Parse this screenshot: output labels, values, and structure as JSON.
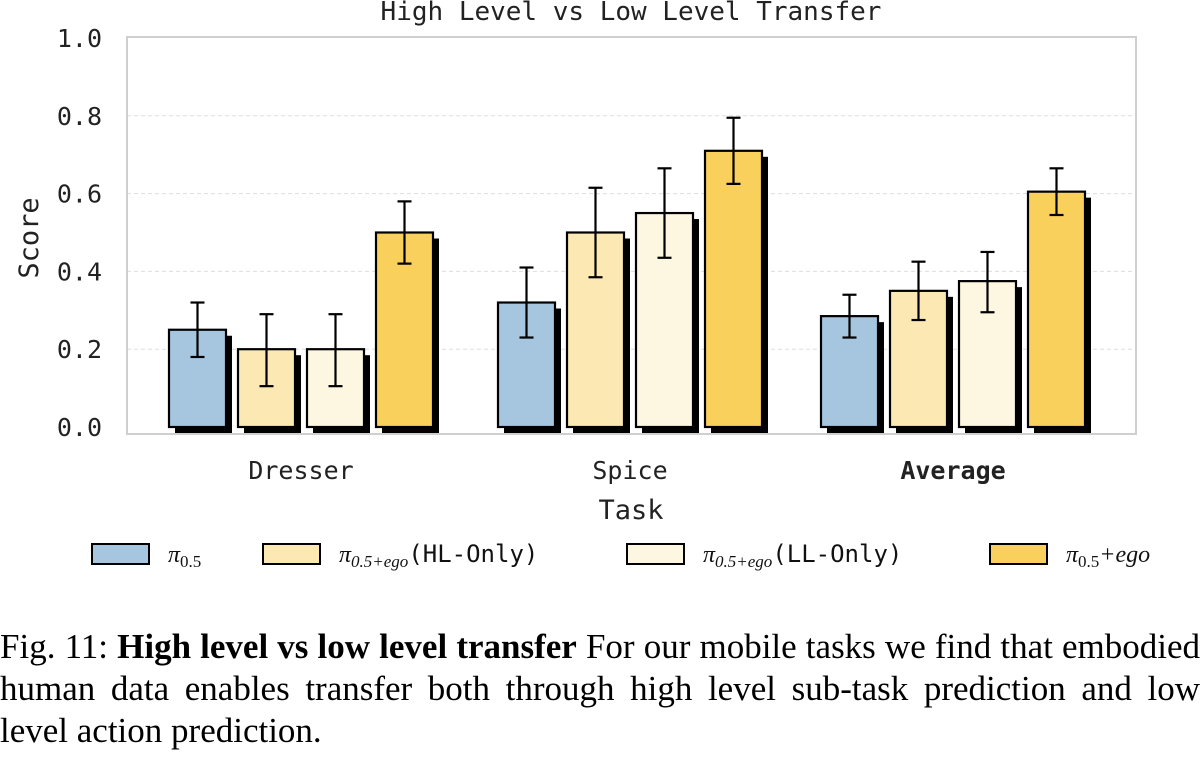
{
  "chart_data": {
    "type": "bar",
    "title": "High Level vs Low Level Transfer",
    "xlabel": "Task",
    "ylabel": "Score",
    "ylim": [
      0,
      1.0
    ],
    "yticks": [
      "0.0",
      "0.2",
      "0.4",
      "0.6",
      "0.8",
      "1.0"
    ],
    "categories": [
      "Dresser",
      "Spice",
      "Average"
    ],
    "bold_categories": [
      "Average"
    ],
    "grid": "horizontal dashed",
    "legend_position": "bottom",
    "series": [
      {
        "name": "π0.5",
        "color": "#a6c6e0",
        "values": [
          0.25,
          0.32,
          0.285
        ],
        "err_low": [
          0.18,
          0.23,
          0.23
        ],
        "err_high": [
          0.32,
          0.41,
          0.34
        ]
      },
      {
        "name": "π0.5+ego(HL-Only)",
        "color": "#fbe8b2",
        "values": [
          0.2,
          0.5,
          0.35
        ],
        "err_low": [
          0.105,
          0.385,
          0.275
        ],
        "err_high": [
          0.29,
          0.615,
          0.425
        ]
      },
      {
        "name": "π0.5+ego(LL-Only)",
        "color": "#fdf6e0",
        "values": [
          0.2,
          0.55,
          0.375
        ],
        "err_low": [
          0.105,
          0.435,
          0.295
        ],
        "err_high": [
          0.29,
          0.665,
          0.45
        ]
      },
      {
        "name": "π0.5+ego",
        "color": "#f8d05b",
        "values": [
          0.5,
          0.71,
          0.605
        ],
        "err_low": [
          0.42,
          0.625,
          0.545
        ],
        "err_high": [
          0.58,
          0.795,
          0.665
        ]
      }
    ]
  },
  "legend": {
    "items": [
      {
        "base": "π",
        "sub": "0.5",
        "suffix": ""
      },
      {
        "base": "π",
        "sub": "0.5+ego",
        "suffix": "(HL-Only)"
      },
      {
        "base": "π",
        "sub": "0.5+ego",
        "suffix": "(LL-Only)"
      },
      {
        "base": "π",
        "sub": "0.5",
        "suffix": "+ego"
      }
    ]
  },
  "caption": {
    "prefix": "Fig. 11: ",
    "title": "High level vs low level transfer",
    "body": " For our mobile tasks we find that embodied human data enables transfer both through high level sub-task prediction and low level action prediction."
  }
}
